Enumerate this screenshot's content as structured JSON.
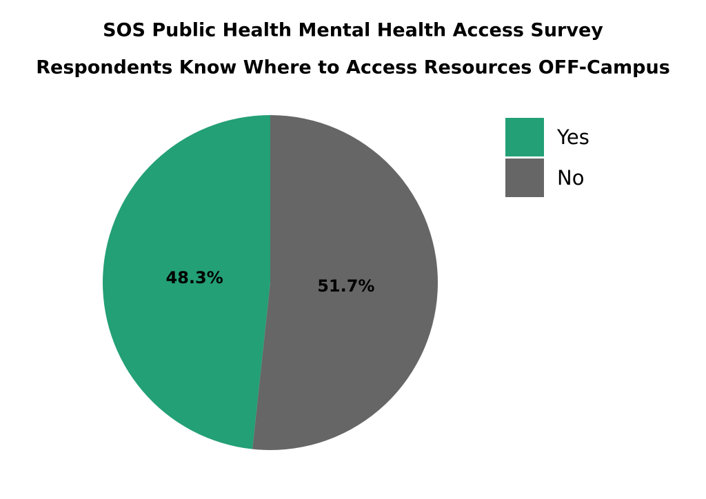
{
  "chart_data": {
    "type": "pie",
    "title": [
      "SOS Public Health Mental Health Access Survey",
      "Respondents Know Where to Access Resources OFF-Campus"
    ],
    "categories": [
      "Yes",
      "No"
    ],
    "values": [
      48.3,
      51.7
    ],
    "value_labels": [
      "48.3%",
      "51.7%"
    ],
    "colors": [
      "#23a075",
      "#666666"
    ],
    "legend": "top-right"
  }
}
